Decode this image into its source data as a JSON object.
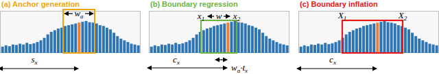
{
  "chart_data": [
    {
      "type": "bar",
      "title": "(a) Anchor generation",
      "tick_labels": false,
      "ylim": [
        0,
        10
      ],
      "values": [
        1.5,
        1.8,
        1.6,
        2.0,
        1.9,
        2.2,
        2.0,
        2.4,
        2.1,
        2.3,
        2.6,
        3.0,
        3.6,
        4.4,
        5.0,
        5.4,
        5.8,
        6.0,
        6.4,
        6.6,
        6.8,
        7.0,
        7.2,
        7.4,
        7.6,
        7.3,
        7.2,
        7.0,
        6.6,
        6.4,
        6.0,
        5.6,
        4.8,
        4.0,
        3.4,
        3.0,
        2.6,
        2.2,
        2.0,
        1.8
      ],
      "colors": [
        "#2E75B6",
        "#2E75B6",
        "#2E75B6",
        "#2E75B6",
        "#2E75B6",
        "#2E75B6",
        "#2E75B6",
        "#2E75B6",
        "#2E75B6",
        "#2E75B6",
        "#2E75B6",
        "#2E75B6",
        "#2E75B6",
        "#2E75B6",
        "#2E75B6",
        "#2E75B6",
        "#2E75B6",
        "#2E75B6",
        "#2E75B6",
        "#2E75B6",
        "#2E75B6",
        "#2E75B6",
        "#ED7D31",
        "#2E75B6",
        "#2E75B6",
        "#2E75B6",
        "#2E75B6",
        "#2E75B6",
        "#2E75B6",
        "#2E75B6",
        "#2E75B6",
        "#2E75B6",
        "#2E75B6",
        "#2E75B6",
        "#2E75B6",
        "#2E75B6",
        "#2E75B6",
        "#2E75B6",
        "#2E75B6",
        "#2E75B6"
      ],
      "annotations": [
        [
          {
            "text": "w",
            "sub": "a"
          }
        ],
        [
          {
            "text": "s",
            "sub": "x"
          }
        ]
      ]
    },
    {
      "type": "bar",
      "title": "(b) Boundary regression",
      "tick_labels": false,
      "ylim": [
        0,
        10
      ],
      "values": [
        1.5,
        1.8,
        1.6,
        2.0,
        1.9,
        2.2,
        2.0,
        2.4,
        2.1,
        2.3,
        2.6,
        3.0,
        3.6,
        4.4,
        5.0,
        5.4,
        5.8,
        6.0,
        6.4,
        6.6,
        6.8,
        7.0,
        7.2,
        7.4,
        7.6,
        7.3,
        7.2,
        7.0,
        6.6,
        6.4,
        6.0,
        5.6,
        4.8,
        4.0,
        3.4,
        3.0,
        2.6,
        2.2,
        2.0,
        1.8
      ],
      "colors": [
        "#2E75B6",
        "#2E75B6",
        "#2E75B6",
        "#2E75B6",
        "#2E75B6",
        "#2E75B6",
        "#2E75B6",
        "#2E75B6",
        "#2E75B6",
        "#2E75B6",
        "#2E75B6",
        "#2E75B6",
        "#2E75B6",
        "#2E75B6",
        "#2E75B6",
        "#2E75B6",
        "#2E75B6",
        "#2E75B6",
        "#2E75B6",
        "#2E75B6",
        "#2E75B6",
        "#2E75B6",
        "#ED7D31",
        "#2E75B6",
        "#2E75B6",
        "#2E75B6",
        "#2E75B6",
        "#2E75B6",
        "#2E75B6",
        "#2E75B6",
        "#2E75B6",
        "#2E75B6",
        "#2E75B6",
        "#2E75B6",
        "#2E75B6",
        "#2E75B6",
        "#2E75B6",
        "#2E75B6",
        "#2E75B6",
        "#2E75B6"
      ],
      "annotations": [
        [
          {
            "text": "x",
            "sub": "1"
          }
        ],
        [
          {
            "text": "w"
          }
        ],
        [
          {
            "text": "x",
            "sub": "2"
          }
        ],
        [
          {
            "text": "c",
            "sub": "x"
          }
        ],
        [
          {
            "text": "w",
            "sub": "a"
          },
          {
            "text": "·"
          },
          {
            "text": "t",
            "sub": "x"
          }
        ]
      ]
    },
    {
      "type": "bar",
      "title": "(c) Boundary inflation",
      "tick_labels": false,
      "ylim": [
        0,
        10
      ],
      "values": [
        1.5,
        1.8,
        1.6,
        2.0,
        1.9,
        2.2,
        2.0,
        2.4,
        2.1,
        2.3,
        2.6,
        3.0,
        3.6,
        4.4,
        5.0,
        5.4,
        5.8,
        6.0,
        6.4,
        6.6,
        6.8,
        7.0,
        7.2,
        7.4,
        7.6,
        7.3,
        7.2,
        7.0,
        6.6,
        6.4,
        6.0,
        5.6,
        4.8,
        4.0,
        3.4,
        3.0,
        2.6,
        2.2,
        2.0,
        1.8
      ],
      "colors": [
        "#2E75B6",
        "#2E75B6",
        "#2E75B6",
        "#2E75B6",
        "#2E75B6",
        "#2E75B6",
        "#2E75B6",
        "#2E75B6",
        "#2E75B6",
        "#2E75B6",
        "#2E75B6",
        "#2E75B6",
        "#2E75B6",
        "#2E75B6",
        "#2E75B6",
        "#2E75B6",
        "#2E75B6",
        "#2E75B6",
        "#2E75B6",
        "#2E75B6",
        "#2E75B6",
        "#2E75B6",
        "#ED7D31",
        "#2E75B6",
        "#2E75B6",
        "#2E75B6",
        "#2E75B6",
        "#2E75B6",
        "#2E75B6",
        "#2E75B6",
        "#2E75B6",
        "#2E75B6",
        "#2E75B6",
        "#2E75B6",
        "#2E75B6",
        "#2E75B6",
        "#2E75B6",
        "#2E75B6",
        "#2E75B6",
        "#2E75B6"
      ],
      "annotations": [
        [
          {
            "text": "X",
            "sub": "1"
          }
        ],
        [
          {
            "text": "X",
            "sub": "2"
          }
        ],
        [
          {
            "text": "c",
            "sub": "x"
          }
        ]
      ]
    }
  ]
}
